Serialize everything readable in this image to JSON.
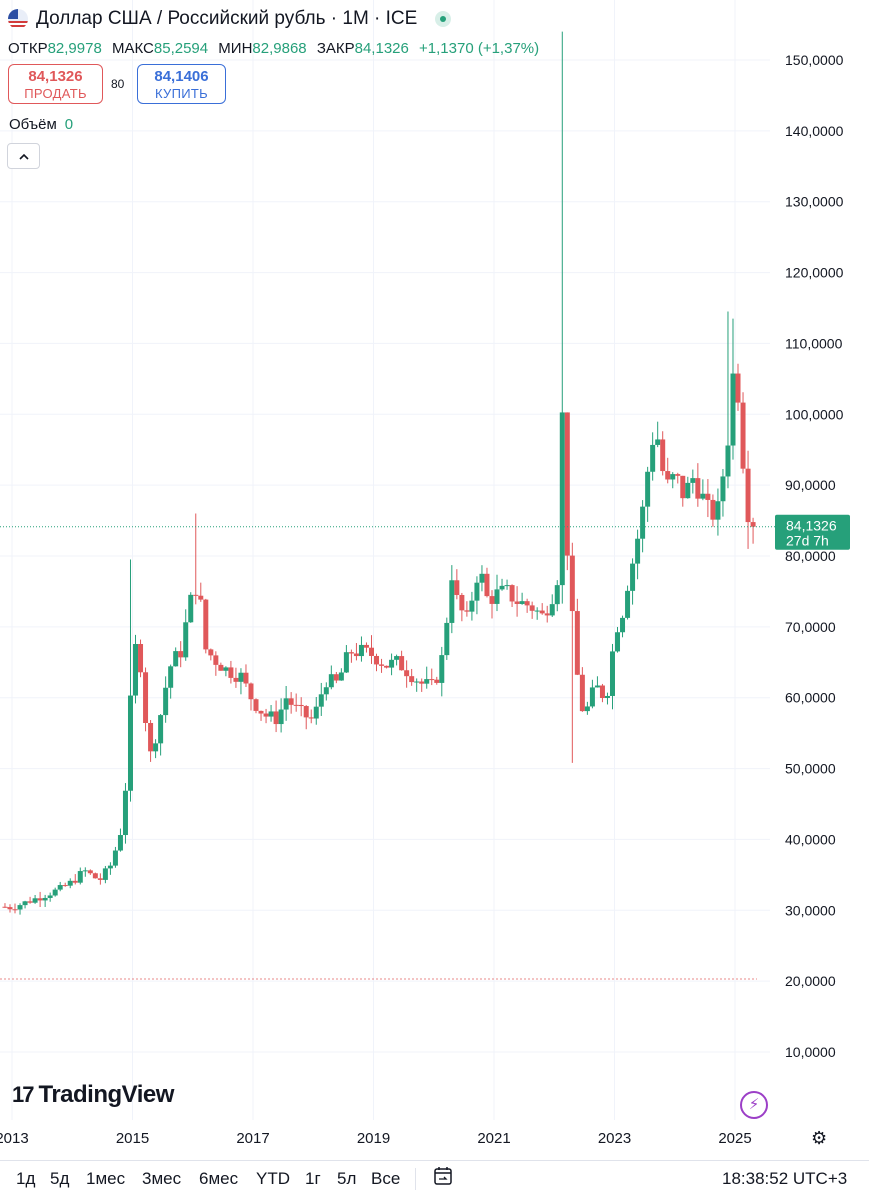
{
  "header": {
    "title": "Доллар США / Российский рубль · 1М · ICE",
    "ohlc": [
      {
        "label": "ОТКР",
        "value": "82,9978"
      },
      {
        "label": "МАКС",
        "value": "85,2594"
      },
      {
        "label": "МИН",
        "value": "82,9868"
      },
      {
        "label": "ЗАКР",
        "value": "84,1326"
      },
      {
        "label": "",
        "value": "+1,1370 (+1,37%)"
      }
    ]
  },
  "trade": {
    "sell_price": "84,1326",
    "sell_label": "ПРОДАТЬ",
    "spread": "80",
    "buy_price": "84,1406",
    "buy_label": "КУПИТЬ"
  },
  "volume": {
    "label": "Объём",
    "value": "0"
  },
  "collapse_icon": "chevron-up-icon",
  "last_price": {
    "value": "84,1326",
    "countdown": "27d 7h",
    "color": "#26a07a"
  },
  "logo": {
    "mark": "17",
    "text": "TradingView"
  },
  "bottom": {
    "periods": [
      "1д",
      "5д",
      "1мес",
      "3мес",
      "6мес",
      "YTD",
      "1г",
      "5л",
      "Все"
    ],
    "time": "18:38:52 UTC+3"
  },
  "chart_data": {
    "type": "candlestick",
    "up_color": "#26a07a",
    "down_color": "#e0585a",
    "y_ticks": [
      "150,0000",
      "140,0000",
      "130,0000",
      "120,0000",
      "110,0000",
      "100,0000",
      "90,0000",
      "80,0000",
      "70,0000",
      "60,0000",
      "50,0000",
      "40,0000",
      "30,0000",
      "20,0000",
      "10,0000"
    ],
    "y_tick_values": [
      150,
      140,
      130,
      120,
      110,
      100,
      90,
      80,
      70,
      60,
      50,
      40,
      30,
      20,
      10
    ],
    "x_ticks": [
      "2013",
      "2015",
      "2017",
      "2019",
      "2021",
      "2023",
      "2025"
    ],
    "x_tick_years": [
      2013,
      2015,
      2017,
      2019,
      2021,
      2023,
      2025
    ],
    "ylim": [
      0,
      155
    ],
    "xlim": [
      2012.8,
      2025.4
    ],
    "grid": true,
    "ref_line": 20.3,
    "series_keypoints": [
      [
        2012.8,
        30.5
      ],
      [
        2013.0,
        30.4
      ],
      [
        2013.5,
        32.0
      ],
      [
        2013.8,
        33.0
      ],
      [
        2014.0,
        34.0
      ],
      [
        2014.2,
        35.6
      ],
      [
        2014.45,
        34.2
      ],
      [
        2014.65,
        36.5
      ],
      [
        2014.8,
        41
      ],
      [
        2014.92,
        50
      ],
      [
        2015.0,
        66
      ],
      [
        2015.1,
        68
      ],
      [
        2015.2,
        58
      ],
      [
        2015.3,
        52
      ],
      [
        2015.4,
        55
      ],
      [
        2015.5,
        59
      ],
      [
        2015.6,
        64
      ],
      [
        2015.7,
        65.5
      ],
      [
        2015.8,
        66.5
      ],
      [
        2015.9,
        71
      ],
      [
        2016.0,
        75
      ],
      [
        2016.1,
        76
      ],
      [
        2016.2,
        67
      ],
      [
        2016.35,
        65.5
      ],
      [
        2016.55,
        64
      ],
      [
        2016.8,
        63
      ],
      [
        2017.0,
        59.5
      ],
      [
        2017.2,
        57.5
      ],
      [
        2017.4,
        57
      ],
      [
        2017.55,
        60
      ],
      [
        2017.7,
        58.5
      ],
      [
        2017.85,
        57.5
      ],
      [
        2018.0,
        56.8
      ],
      [
        2018.2,
        62.5
      ],
      [
        2018.4,
        62
      ],
      [
        2018.6,
        66.5
      ],
      [
        2018.8,
        66.5
      ],
      [
        2019.0,
        66
      ],
      [
        2019.2,
        64.6
      ],
      [
        2019.4,
        65
      ],
      [
        2019.6,
        63.5
      ],
      [
        2019.8,
        62
      ],
      [
        2020.0,
        61.5
      ],
      [
        2020.15,
        66
      ],
      [
        2020.3,
        77.5
      ],
      [
        2020.4,
        73
      ],
      [
        2020.55,
        71
      ],
      [
        2020.75,
        78.5
      ],
      [
        2020.9,
        73.5
      ],
      [
        2021.0,
        74.5
      ],
      [
        2021.2,
        75
      ],
      [
        2021.4,
        73.5
      ],
      [
        2021.6,
        73
      ],
      [
        2021.8,
        71.5
      ],
      [
        2021.95,
        74
      ],
      [
        2022.05,
        77
      ],
      [
        2022.12,
        103
      ],
      [
        2022.2,
        83
      ],
      [
        2022.3,
        71
      ],
      [
        2022.4,
        61.5
      ],
      [
        2022.5,
        57
      ],
      [
        2022.6,
        60
      ],
      [
        2022.7,
        61.5
      ],
      [
        2022.8,
        60.5
      ],
      [
        2022.92,
        61.5
      ],
      [
        2023.0,
        70
      ],
      [
        2023.1,
        70.5
      ],
      [
        2023.2,
        75.5
      ],
      [
        2023.35,
        81
      ],
      [
        2023.5,
        88
      ],
      [
        2023.6,
        96
      ],
      [
        2023.7,
        97.5
      ],
      [
        2023.8,
        92
      ],
      [
        2023.9,
        89.5
      ],
      [
        2024.0,
        91.5
      ],
      [
        2024.15,
        88.5
      ],
      [
        2024.3,
        91
      ],
      [
        2024.45,
        88.5
      ],
      [
        2024.55,
        86.5
      ],
      [
        2024.7,
        85.5
      ],
      [
        2024.8,
        91.5
      ],
      [
        2024.92,
        99
      ],
      [
        2025.0,
        110
      ],
      [
        2025.08,
        99
      ],
      [
        2025.15,
        92
      ],
      [
        2025.22,
        86
      ],
      [
        2025.3,
        84.13
      ]
    ],
    "spikes": [
      [
        2014.94,
        79.5
      ],
      [
        2016.08,
        86.0
      ],
      [
        2022.12,
        154.0
      ],
      [
        2022.3,
        50.8
      ],
      [
        2024.88,
        114.5
      ],
      [
        2025.0,
        113.5
      ],
      [
        2025.25,
        81.0
      ]
    ]
  }
}
